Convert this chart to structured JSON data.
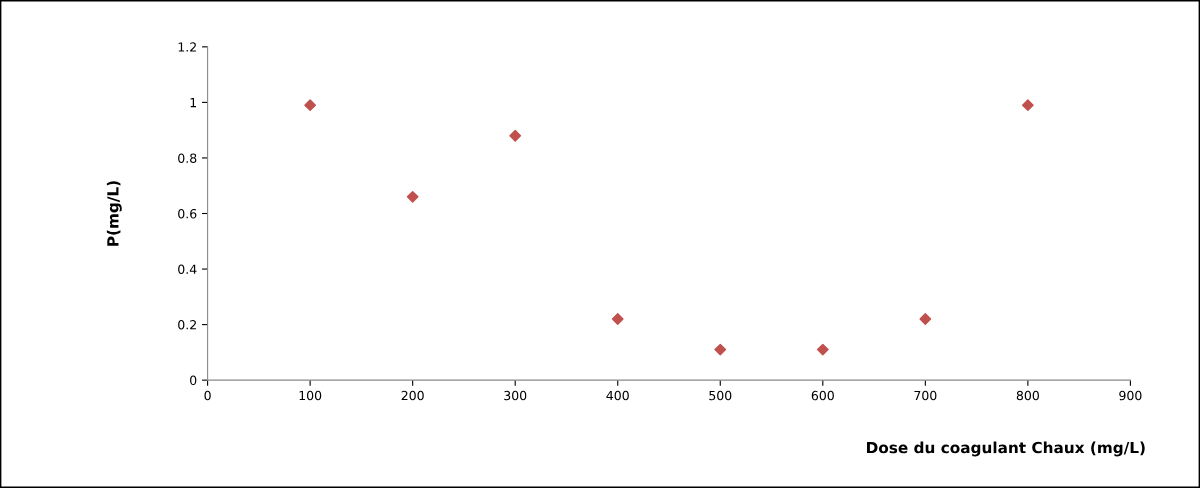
{
  "chart_data": {
    "type": "scatter",
    "xlabel": "Dose du coagulant Chaux (mg/L)",
    "ylabel": "P(mg/L)",
    "series": [
      {
        "color": "#c0504d",
        "x": [
          100,
          200,
          300,
          400,
          500,
          600,
          700,
          800
        ],
        "values": [
          0.99,
          0.66,
          0.88,
          0.22,
          0.11,
          0.11,
          0.22,
          0.99
        ]
      }
    ],
    "xlim": [
      0,
      900
    ],
    "xticks": [
      0,
      100,
      200,
      300,
      400,
      500,
      600,
      700,
      800,
      900
    ],
    "ylim": [
      0,
      1.2
    ],
    "yticks": [
      0,
      0.2,
      0.4,
      0.6,
      0.8,
      1,
      1.2
    ],
    "marker": "diamond",
    "grid": false,
    "legend": false
  }
}
